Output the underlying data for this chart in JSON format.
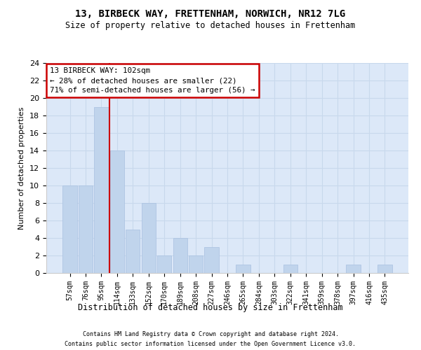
{
  "title1": "13, BIRBECK WAY, FRETTENHAM, NORWICH, NR12 7LG",
  "title2": "Size of property relative to detached houses in Frettenham",
  "xlabel": "Distribution of detached houses by size in Frettenham",
  "ylabel": "Number of detached properties",
  "categories": [
    "57sqm",
    "76sqm",
    "95sqm",
    "114sqm",
    "133sqm",
    "152sqm",
    "170sqm",
    "189sqm",
    "208sqm",
    "227sqm",
    "246sqm",
    "265sqm",
    "284sqm",
    "303sqm",
    "322sqm",
    "341sqm",
    "359sqm",
    "378sqm",
    "397sqm",
    "416sqm",
    "435sqm"
  ],
  "values": [
    10,
    10,
    19,
    14,
    5,
    8,
    2,
    4,
    2,
    3,
    0,
    1,
    0,
    0,
    1,
    0,
    0,
    0,
    1,
    0,
    1
  ],
  "bar_color": "#c0d4ec",
  "bar_edgecolor": "#a8c0e0",
  "vline_x": 2.5,
  "vline_color": "#cc0000",
  "ylim": [
    0,
    24
  ],
  "yticks": [
    0,
    2,
    4,
    6,
    8,
    10,
    12,
    14,
    16,
    18,
    20,
    22,
    24
  ],
  "grid_color": "#c8d8ec",
  "background_color": "#dce8f8",
  "annotation_line1": "13 BIRBECK WAY: 102sqm",
  "annotation_line2": "← 28% of detached houses are smaller (22)",
  "annotation_line3": "71% of semi-detached houses are larger (56) →",
  "annotation_box_edgecolor": "#cc0000",
  "footer1": "Contains HM Land Registry data © Crown copyright and database right 2024.",
  "footer2": "Contains public sector information licensed under the Open Government Licence v3.0."
}
